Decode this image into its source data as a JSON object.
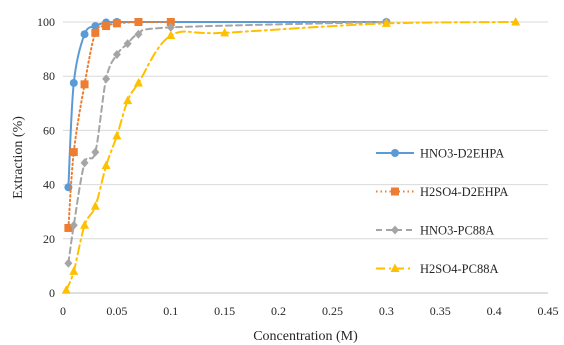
{
  "chart_data": {
    "type": "line",
    "title": "",
    "xlabel": "Concentration (M)",
    "ylabel": "Extraction (%)",
    "xlim": [
      0,
      0.45
    ],
    "ylim": [
      0,
      100
    ],
    "xticks": [
      0,
      0.05,
      0.1,
      0.15,
      0.2,
      0.25,
      0.3,
      0.35,
      0.4,
      0.45
    ],
    "yticks": [
      0,
      20,
      40,
      60,
      80,
      100
    ],
    "xtick_labels": [
      "0",
      "0.05",
      "0.1",
      "0.15",
      "0.2",
      "0.25",
      "0.3",
      "0.35",
      "0.4",
      "0.45"
    ],
    "ytick_labels": [
      "0",
      "20",
      "40",
      "60",
      "80",
      "100"
    ],
    "grid": "horizontal",
    "legend_position": "right",
    "series": [
      {
        "name": "HNO3-D2EHPA",
        "color": "#5B9BD5",
        "line": "solid",
        "marker": "circle",
        "x": [
          0.005,
          0.01,
          0.02,
          0.03,
          0.04,
          0.05,
          0.07,
          0.1,
          0.3
        ],
        "y": [
          39,
          77.5,
          95.5,
          98.5,
          99.8,
          100,
          100,
          100,
          100
        ]
      },
      {
        "name": "H2SO4-D2EHPA",
        "color": "#ED7D31",
        "line": "dotted",
        "marker": "square",
        "x": [
          0.005,
          0.01,
          0.02,
          0.03,
          0.04,
          0.05,
          0.07,
          0.1
        ],
        "y": [
          24,
          52,
          77,
          96,
          98.5,
          99.5,
          100,
          100
        ]
      },
      {
        "name": "HNO3-PC88A",
        "color": "#A5A5A5",
        "line": "dashed",
        "marker": "diamond",
        "x": [
          0.005,
          0.01,
          0.02,
          0.03,
          0.04,
          0.05,
          0.06,
          0.07,
          0.1,
          0.3
        ],
        "y": [
          11,
          25,
          48,
          52,
          79,
          88,
          92,
          95.5,
          98,
          100
        ]
      },
      {
        "name": "H2SO4-PC88A",
        "color": "#FFC000",
        "line": "dashdot",
        "marker": "triangle",
        "x": [
          0.003,
          0.01,
          0.02,
          0.03,
          0.04,
          0.05,
          0.06,
          0.07,
          0.1,
          0.15,
          0.3,
          0.42
        ],
        "y": [
          1,
          8,
          25,
          32,
          47,
          58,
          71,
          77.5,
          95,
          96,
          99.5,
          100
        ]
      }
    ]
  }
}
